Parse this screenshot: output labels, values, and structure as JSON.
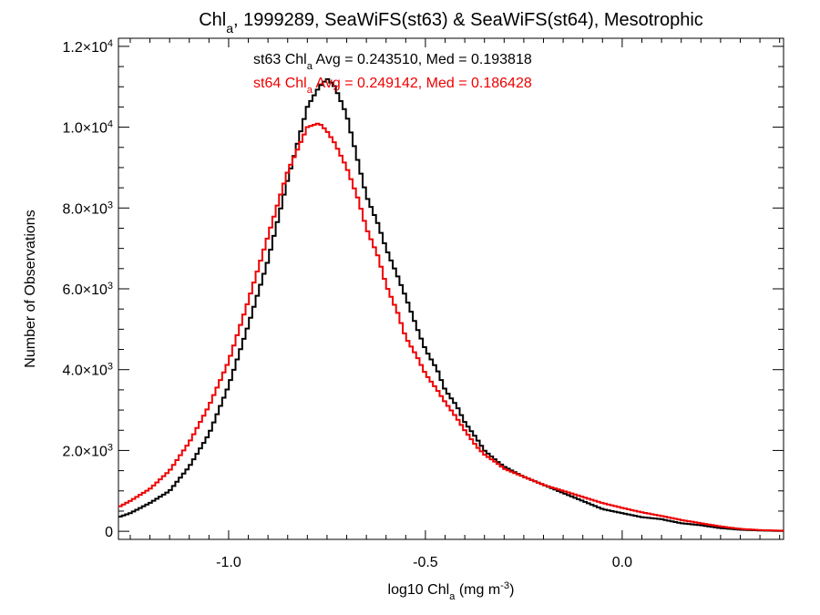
{
  "chart_data": {
    "type": "line",
    "title": {
      "parts": [
        {
          "text": "Chl",
          "sub": false
        },
        {
          "text": "a",
          "sub": true
        },
        {
          "text": ", 1999289, SeaWiFS(st63) & SeaWiFS(st64), Mesotrophic",
          "sub": false
        }
      ]
    },
    "xlabel": {
      "parts": [
        {
          "text": "log10 Chl",
          "sup": false,
          "sub": false
        },
        {
          "text": "a",
          "sub": true
        },
        {
          "text": " (mg m",
          "sub": false
        },
        {
          "text": "-3",
          "sup": true
        },
        {
          "text": ")",
          "sub": false
        }
      ]
    },
    "ylabel": "Number of Observations",
    "xlim": [
      -1.28,
      0.41
    ],
    "ylim": [
      -200,
      12200
    ],
    "xticks": [
      {
        "value": -1.0,
        "label": "-1.0"
      },
      {
        "value": -0.5,
        "label": "-0.5"
      },
      {
        "value": 0.0,
        "label": "0.0"
      }
    ],
    "yticks": [
      {
        "value": 0,
        "mant": "0",
        "exp": ""
      },
      {
        "value": 2000,
        "mant": "2.0×10",
        "exp": "3"
      },
      {
        "value": 4000,
        "mant": "4.0×10",
        "exp": "3"
      },
      {
        "value": 6000,
        "mant": "6.0×10",
        "exp": "3"
      },
      {
        "value": 8000,
        "mant": "8.0×10",
        "exp": "3"
      },
      {
        "value": 10000,
        "mant": "1.0×10",
        "exp": "4"
      },
      {
        "value": 12000,
        "mant": "1.2×10",
        "exp": "4"
      }
    ],
    "grid": false,
    "series": [
      {
        "name": "st63",
        "color": "#000000",
        "annotation": {
          "parts": [
            {
              "text": "st63 Chl",
              "sub": false
            },
            {
              "text": "a",
              "sub": true
            },
            {
              "text": " Avg = 0.243510, Med = 0.193818",
              "sub": false
            }
          ]
        },
        "x": [
          -1.28,
          -1.25,
          -1.2,
          -1.15,
          -1.1,
          -1.05,
          -1.0,
          -0.95,
          -0.9,
          -0.85,
          -0.8,
          -0.77,
          -0.75,
          -0.73,
          -0.7,
          -0.67,
          -0.65,
          -0.62,
          -0.6,
          -0.57,
          -0.55,
          -0.52,
          -0.5,
          -0.47,
          -0.45,
          -0.42,
          -0.4,
          -0.37,
          -0.35,
          -0.32,
          -0.3,
          -0.25,
          -0.2,
          -0.15,
          -0.1,
          -0.05,
          0.0,
          0.05,
          0.1,
          0.15,
          0.2,
          0.25,
          0.3,
          0.35,
          0.41
        ],
        "y": [
          350,
          450,
          700,
          1000,
          1600,
          2400,
          3600,
          5100,
          6700,
          8700,
          10500,
          11000,
          11200,
          11000,
          10300,
          9100,
          8300,
          7600,
          7000,
          6300,
          5800,
          5000,
          4500,
          4000,
          3500,
          3100,
          2700,
          2300,
          2000,
          1750,
          1600,
          1350,
          1150,
          950,
          750,
          550,
          450,
          350,
          300,
          200,
          150,
          80,
          40,
          20,
          10
        ]
      },
      {
        "name": "st64",
        "color": "#ee0000",
        "annotation": {
          "parts": [
            {
              "text": "st64 Chl",
              "sub": false
            },
            {
              "text": "a",
              "sub": true
            },
            {
              "text": " Avg = 0.249142, Med = 0.186428",
              "sub": false
            }
          ]
        },
        "x": [
          -1.28,
          -1.25,
          -1.2,
          -1.15,
          -1.1,
          -1.05,
          -1.0,
          -0.95,
          -0.9,
          -0.85,
          -0.8,
          -0.77,
          -0.75,
          -0.73,
          -0.7,
          -0.67,
          -0.65,
          -0.62,
          -0.6,
          -0.57,
          -0.55,
          -0.52,
          -0.5,
          -0.47,
          -0.45,
          -0.42,
          -0.4,
          -0.37,
          -0.35,
          -0.32,
          -0.3,
          -0.25,
          -0.2,
          -0.15,
          -0.1,
          -0.05,
          0.0,
          0.05,
          0.1,
          0.15,
          0.2,
          0.25,
          0.3,
          0.35,
          0.41
        ],
        "y": [
          600,
          750,
          1050,
          1500,
          2200,
          3100,
          4200,
          5700,
          7300,
          8900,
          10000,
          10100,
          9900,
          9600,
          9000,
          8200,
          7500,
          6800,
          6100,
          5400,
          4800,
          4300,
          3900,
          3500,
          3200,
          2800,
          2500,
          2100,
          1900,
          1700,
          1550,
          1350,
          1150,
          1000,
          850,
          700,
          580,
          470,
          380,
          280,
          200,
          120,
          60,
          30,
          15
        ]
      }
    ]
  }
}
